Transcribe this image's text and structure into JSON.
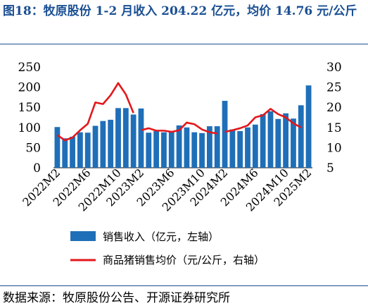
{
  "header": {
    "title": "图18：牧原股份 1-2 月收入 204.22 亿元，均价 14.76 元/公斤"
  },
  "footer": {
    "source": "数据来源：牧原股份公告、开源证券研究所"
  },
  "colors": {
    "bar": "#1f6fb8",
    "line": "#e3171b",
    "title": "#1a4f93"
  },
  "chart_data": {
    "type": "bar+line",
    "categories": [
      "2022M2",
      "2022M3",
      "2022M4",
      "2022M5",
      "2022M6",
      "2022M7",
      "2022M8",
      "2022M9",
      "2022M10",
      "2022M11",
      "2022M12",
      "2023M2",
      "2023M3",
      "2023M4",
      "2023M5",
      "2023M6",
      "2023M7",
      "2023M8",
      "2023M9",
      "2023M10",
      "2023M11",
      "2023M12",
      "2024M2",
      "2024M3",
      "2024M4",
      "2024M5",
      "2024M6",
      "2024M7",
      "2024M8",
      "2024M9",
      "2024M10",
      "2024M11",
      "2024M12",
      "2025M2"
    ],
    "x_tick_labels": [
      "2022M2",
      "2022M6",
      "2022M10",
      "2023M2",
      "2023M6",
      "2023M10",
      "2024M2",
      "2024M6",
      "2024M10",
      "2025M2"
    ],
    "series": [
      {
        "name": "销售收入（亿元，左轴）",
        "axis": "left",
        "type": "bar",
        "values": [
          101,
          73,
          77,
          88,
          87,
          104,
          116,
          119,
          148,
          148,
          132,
          147,
          87,
          91,
          88,
          88,
          105,
          100,
          88,
          86,
          103,
          103,
          166,
          95,
          91,
          100,
          107,
          133,
          140,
          121,
          135,
          122,
          155,
          204.22
        ]
      },
      {
        "name": "商品猪销售均价（元/公斤，右轴）",
        "axis": "right",
        "type": "line",
        "values": [
          13.1,
          11.8,
          12.5,
          14.3,
          15.9,
          21.2,
          20.8,
          23.0,
          26.0,
          23.2,
          18.6,
          14.3,
          14.8,
          14.2,
          14.2,
          13.9,
          14.3,
          16.2,
          15.8,
          14.5,
          13.8,
          13.5,
          13.9,
          14.3,
          14.8,
          15.5,
          17.5,
          18.0,
          19.6,
          18.3,
          17.5,
          16.0,
          15.0,
          14.76
        ],
        "segment_breaks_after": [
          10,
          21,
          32
        ]
      }
    ],
    "y_left": {
      "ticks": [
        "0",
        "50",
        "100",
        "150",
        "200",
        "250"
      ],
      "min": 0,
      "max": 250
    },
    "y_right": {
      "ticks": [
        "5",
        "10",
        "15",
        "20",
        "25",
        "30"
      ],
      "min": 5,
      "max": 30
    },
    "legend": {
      "position": "bottom",
      "items": [
        "销售收入（亿元，左轴）",
        "商品猪销售均价（元/公斤，右轴）"
      ]
    }
  }
}
